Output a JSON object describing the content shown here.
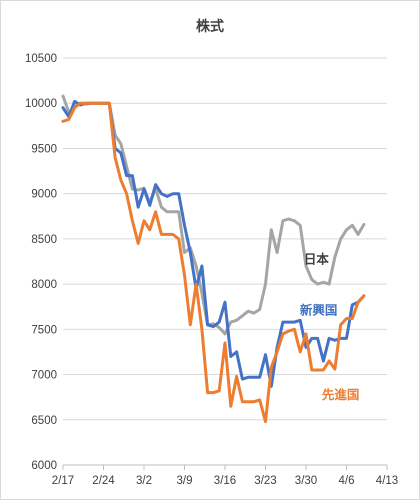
{
  "chart_data": {
    "type": "line",
    "title": "株式",
    "xlabel": "",
    "ylabel": "",
    "ylim": [
      6000,
      10500
    ],
    "y_ticks": [
      6000,
      6500,
      7000,
      7500,
      8000,
      8500,
      9000,
      9500,
      10000,
      10500
    ],
    "x_tick_labels": [
      "2/17",
      "2/24",
      "3/2",
      "3/9",
      "3/16",
      "3/23",
      "3/30",
      "4/6",
      "4/13"
    ],
    "x_tick_days": [
      0,
      7,
      14,
      21,
      28,
      35,
      42,
      49,
      56
    ],
    "xlim_days": [
      0,
      56
    ],
    "grid": "horizontal",
    "legend": "inline labels at series ends",
    "series": [
      {
        "name": "日本",
        "color": "#a5a5a5",
        "label_at": [
          8450,
          8600
        ],
        "points": [
          [
            0,
            10080
          ],
          [
            1,
            9900
          ],
          [
            2,
            9960
          ],
          [
            3,
            10000
          ],
          [
            4,
            9990
          ],
          [
            5,
            10000
          ],
          [
            6,
            10000
          ],
          [
            7,
            10000
          ],
          [
            8,
            10000
          ],
          [
            9,
            9650
          ],
          [
            10,
            9550
          ],
          [
            11,
            9300
          ],
          [
            12,
            9050
          ],
          [
            13,
            9040
          ],
          [
            14,
            9060
          ],
          [
            15,
            8900
          ],
          [
            16,
            9060
          ],
          [
            17,
            8850
          ],
          [
            18,
            8800
          ],
          [
            19,
            8800
          ],
          [
            20,
            8800
          ],
          [
            21,
            8350
          ],
          [
            22,
            8400
          ],
          [
            23,
            8200
          ],
          [
            24,
            7900
          ],
          [
            25,
            7550
          ],
          [
            26,
            7560
          ],
          [
            27,
            7520
          ],
          [
            28,
            7450
          ],
          [
            29,
            7580
          ],
          [
            30,
            7600
          ],
          [
            31,
            7650
          ],
          [
            32,
            7700
          ],
          [
            33,
            7680
          ],
          [
            34,
            7720
          ],
          [
            35,
            8000
          ],
          [
            36,
            8600
          ],
          [
            37,
            8350
          ],
          [
            38,
            8700
          ],
          [
            39,
            8720
          ],
          [
            40,
            8700
          ],
          [
            41,
            8650
          ],
          [
            42,
            8200
          ],
          [
            43,
            8050
          ],
          [
            44,
            8000
          ],
          [
            45,
            8020
          ],
          [
            46,
            8000
          ],
          [
            47,
            8300
          ],
          [
            48,
            8500
          ],
          [
            49,
            8600
          ],
          [
            50,
            8650
          ],
          [
            51,
            8550
          ],
          [
            52,
            8660
          ]
        ]
      },
      {
        "name": "新興国",
        "color": "#4472c4",
        "label_at": [
          7600,
          7700
        ],
        "points": [
          [
            0,
            9950
          ],
          [
            1,
            9850
          ],
          [
            2,
            10020
          ],
          [
            3,
            9980
          ],
          [
            4,
            10000
          ],
          [
            5,
            10000
          ],
          [
            6,
            10000
          ],
          [
            7,
            10000
          ],
          [
            8,
            10000
          ],
          [
            9,
            9500
          ],
          [
            10,
            9450
          ],
          [
            11,
            9200
          ],
          [
            12,
            9200
          ],
          [
            13,
            8850
          ],
          [
            14,
            9050
          ],
          [
            15,
            8870
          ],
          [
            16,
            9100
          ],
          [
            17,
            9000
          ],
          [
            18,
            8970
          ],
          [
            19,
            9000
          ],
          [
            20,
            9000
          ],
          [
            21,
            8650
          ],
          [
            22,
            8350
          ],
          [
            23,
            7950
          ],
          [
            24,
            8200
          ],
          [
            25,
            7550
          ],
          [
            26,
            7530
          ],
          [
            27,
            7580
          ],
          [
            28,
            7800
          ],
          [
            29,
            7200
          ],
          [
            30,
            7250
          ],
          [
            31,
            6950
          ],
          [
            32,
            6970
          ],
          [
            33,
            6970
          ],
          [
            34,
            6970
          ],
          [
            35,
            7220
          ],
          [
            36,
            6870
          ],
          [
            37,
            7300
          ],
          [
            38,
            7580
          ],
          [
            39,
            7580
          ],
          [
            40,
            7580
          ],
          [
            41,
            7600
          ],
          [
            42,
            7300
          ],
          [
            43,
            7400
          ],
          [
            44,
            7400
          ],
          [
            45,
            7150
          ],
          [
            46,
            7400
          ],
          [
            47,
            7380
          ],
          [
            48,
            7400
          ],
          [
            49,
            7400
          ],
          [
            50,
            7770
          ],
          [
            51,
            7800
          ],
          [
            52,
            7870
          ]
        ]
      },
      {
        "name": "先進国",
        "color": "#ed7d31",
        "label_at": [
          6820,
          6900
        ],
        "points": [
          [
            0,
            9800
          ],
          [
            1,
            9820
          ],
          [
            2,
            9950
          ],
          [
            3,
            10000
          ],
          [
            4,
            10000
          ],
          [
            5,
            10000
          ],
          [
            6,
            10000
          ],
          [
            7,
            10000
          ],
          [
            8,
            10000
          ],
          [
            9,
            9400
          ],
          [
            10,
            9150
          ],
          [
            11,
            9000
          ],
          [
            12,
            8700
          ],
          [
            13,
            8450
          ],
          [
            14,
            8700
          ],
          [
            15,
            8600
          ],
          [
            16,
            8800
          ],
          [
            17,
            8550
          ],
          [
            18,
            8550
          ],
          [
            19,
            8550
          ],
          [
            20,
            8500
          ],
          [
            21,
            8100
          ],
          [
            22,
            7550
          ],
          [
            23,
            8000
          ],
          [
            24,
            7500
          ],
          [
            25,
            6800
          ],
          [
            26,
            6800
          ],
          [
            27,
            6820
          ],
          [
            28,
            7350
          ],
          [
            29,
            6650
          ],
          [
            30,
            6980
          ],
          [
            31,
            6700
          ],
          [
            32,
            6700
          ],
          [
            33,
            6700
          ],
          [
            34,
            6720
          ],
          [
            35,
            6480
          ],
          [
            36,
            7080
          ],
          [
            37,
            7250
          ],
          [
            38,
            7450
          ],
          [
            39,
            7480
          ],
          [
            40,
            7500
          ],
          [
            41,
            7250
          ],
          [
            42,
            7450
          ],
          [
            43,
            7050
          ],
          [
            44,
            7050
          ],
          [
            45,
            7050
          ],
          [
            46,
            7150
          ],
          [
            47,
            7060
          ],
          [
            48,
            7550
          ],
          [
            49,
            7620
          ],
          [
            50,
            7620
          ],
          [
            51,
            7800
          ],
          [
            52,
            7870
          ]
        ]
      }
    ]
  }
}
